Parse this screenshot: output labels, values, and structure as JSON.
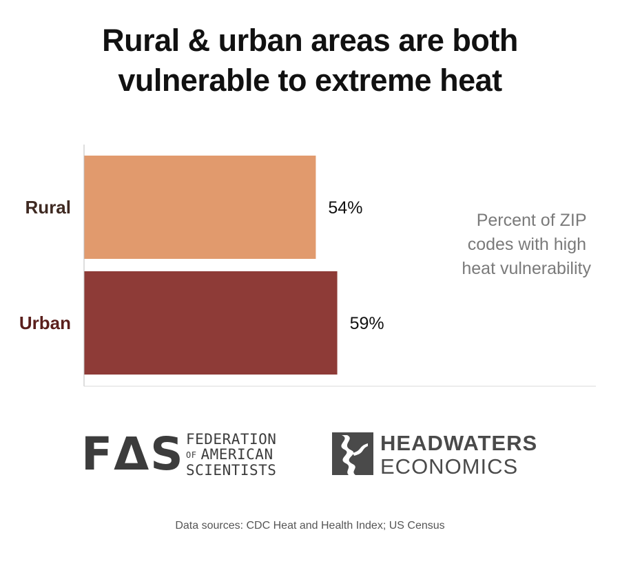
{
  "title": {
    "line1": "Rural & urban areas are both",
    "line2": "vulnerable to extreme heat"
  },
  "chart_data": {
    "type": "bar",
    "orientation": "horizontal",
    "categories": [
      "Rural",
      "Urban"
    ],
    "values": [
      54,
      59
    ],
    "value_labels": [
      "54%",
      "59%"
    ],
    "unit": "%",
    "colors": [
      "#e19a6d",
      "#8e3b37"
    ],
    "category_label_colors": [
      "#3f2a22",
      "#5a1f1c"
    ],
    "annotation": "Percent of ZIP codes with high heat vulnerability",
    "annotation_lines": [
      "Percent of ZIP",
      "codes with high",
      "heat vulnerability"
    ],
    "xlim": [
      0,
      100
    ],
    "grid": false,
    "legend": "none"
  },
  "logos": {
    "fas": {
      "mark": "FΔS",
      "line1": "FEDERATION",
      "line2_small": "OF",
      "line2": "AMERICAN",
      "line3": "SCIENTISTS"
    },
    "headwaters": {
      "icon": "headwaters-river-icon",
      "line1": "HEADWATERS",
      "line2": "ECONOMICS"
    }
  },
  "source": "Data sources: CDC Heat and Health Index; US Census"
}
